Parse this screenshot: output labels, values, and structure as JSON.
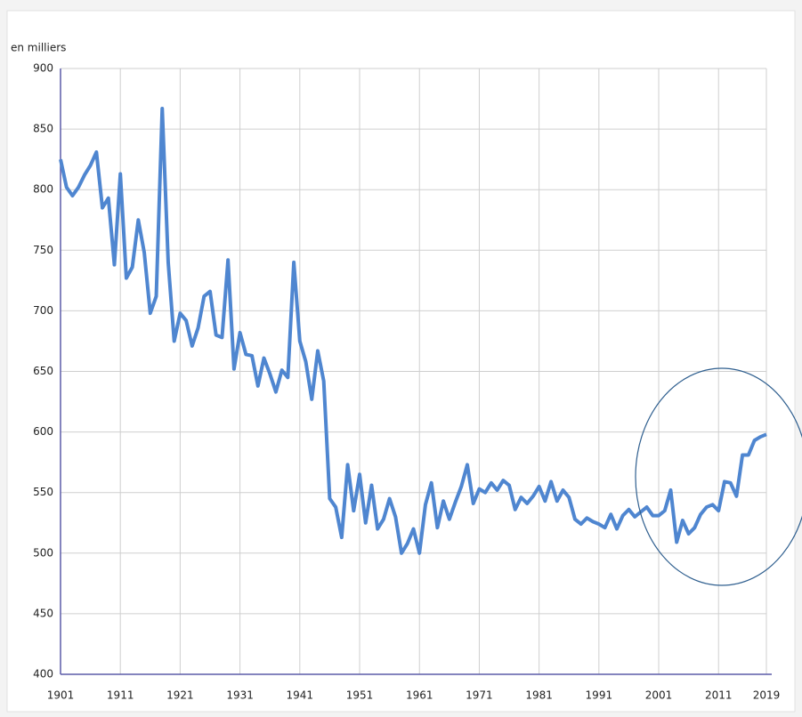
{
  "chart_data": {
    "type": "line",
    "y_label": "en milliers",
    "x": [
      1901,
      1902,
      1903,
      1904,
      1905,
      1906,
      1907,
      1908,
      1909,
      1910,
      1911,
      1912,
      1913,
      1914,
      1915,
      1916,
      1917,
      1918,
      1919,
      1920,
      1921,
      1922,
      1923,
      1924,
      1925,
      1926,
      1927,
      1928,
      1929,
      1930,
      1931,
      1932,
      1933,
      1934,
      1935,
      1936,
      1937,
      1938,
      1939,
      1940,
      1941,
      1942,
      1943,
      1944,
      1945,
      1946,
      1947,
      1948,
      1949,
      1950,
      1951,
      1952,
      1953,
      1954,
      1955,
      1956,
      1957,
      1958,
      1959,
      1960,
      1961,
      1962,
      1963,
      1964,
      1965,
      1966,
      1967,
      1968,
      1969,
      1970,
      1971,
      1972,
      1973,
      1974,
      1975,
      1976,
      1977,
      1978,
      1979,
      1980,
      1981,
      1982,
      1983,
      1984,
      1985,
      1986,
      1987,
      1988,
      1989,
      1990,
      1991,
      1992,
      1993,
      1994,
      1995,
      1996,
      1997,
      1998,
      1999,
      2000,
      2001,
      2002,
      2003,
      2004,
      2005,
      2006,
      2007,
      2008,
      2009,
      2010,
      2011,
      2012,
      2013,
      2014,
      2015,
      2016,
      2017,
      2018,
      2019
    ],
    "series": [
      {
        "color": "#4f86d0",
        "values": [
          825,
          802,
          795,
          802,
          812,
          820,
          831,
          785,
          793,
          738,
          813,
          727,
          736,
          775,
          748,
          698,
          712,
          867,
          740,
          675,
          698,
          692,
          671,
          686,
          712,
          716,
          680,
          678,
          742,
          652,
          682,
          664,
          663,
          638,
          661,
          648,
          633,
          651,
          645,
          740,
          675,
          658,
          627,
          667,
          642,
          545,
          538,
          513,
          573,
          535,
          565,
          525,
          556,
          520,
          528,
          545,
          530,
          500,
          508,
          520,
          500,
          540,
          558,
          521,
          543,
          528,
          542,
          555,
          573,
          541,
          553,
          550,
          558,
          552,
          560,
          556,
          536,
          546,
          541,
          547,
          555,
          543,
          559,
          543,
          552,
          546,
          528,
          524,
          529,
          526,
          524,
          521,
          532,
          520,
          531,
          536,
          530,
          534,
          538,
          531,
          531,
          535,
          552,
          509,
          527,
          516,
          521,
          532,
          538,
          540,
          535,
          559,
          558,
          547,
          581,
          581,
          593,
          596,
          598
        ]
      }
    ],
    "xlim": [
      1901,
      2019
    ],
    "xticks": [
      1901,
      1911,
      1921,
      1931,
      1941,
      1951,
      1961,
      1971,
      1981,
      1991,
      2001,
      2011,
      2019
    ],
    "ylim": [
      400,
      900
    ],
    "yticks": [
      400,
      450,
      500,
      550,
      600,
      650,
      700,
      750,
      800,
      850,
      900
    ],
    "grid": true
  }
}
